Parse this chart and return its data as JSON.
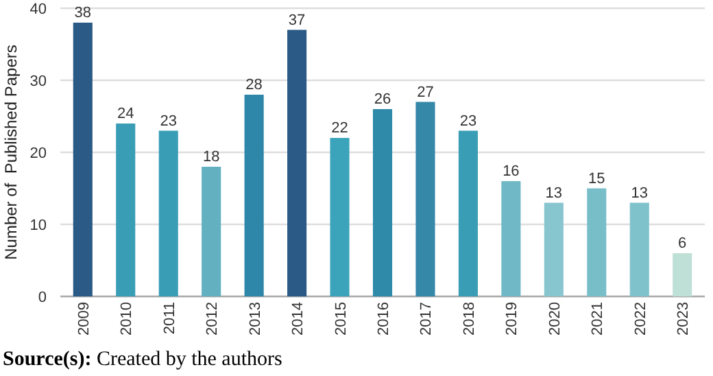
{
  "chart_data": {
    "type": "bar",
    "ylabel": "Number of  Published Papers",
    "categories": [
      "2009",
      "2010",
      "2011",
      "2012",
      "2013",
      "2014",
      "2015",
      "2016",
      "2017",
      "2018",
      "2019",
      "2020",
      "2021",
      "2022",
      "2023"
    ],
    "values": [
      38,
      24,
      23,
      18,
      28,
      37,
      22,
      26,
      27,
      23,
      16,
      13,
      15,
      13,
      6
    ],
    "colors": [
      "#2a5a85",
      "#3a9db6",
      "#3a9db6",
      "#63b0c0",
      "#2e86a8",
      "#2a5a85",
      "#3ca4ba",
      "#2e8aa8",
      "#3588a8",
      "#3a9db6",
      "#70b8c6",
      "#88c6cf",
      "#78bec9",
      "#80c2cb",
      "#bfe0d6"
    ],
    "ylim": [
      0,
      40
    ],
    "yticks": [
      0,
      10,
      20,
      30,
      40
    ],
    "grid": "y",
    "data_labels": true,
    "annotations": [
      "Source(s): Created by the authors"
    ]
  }
}
